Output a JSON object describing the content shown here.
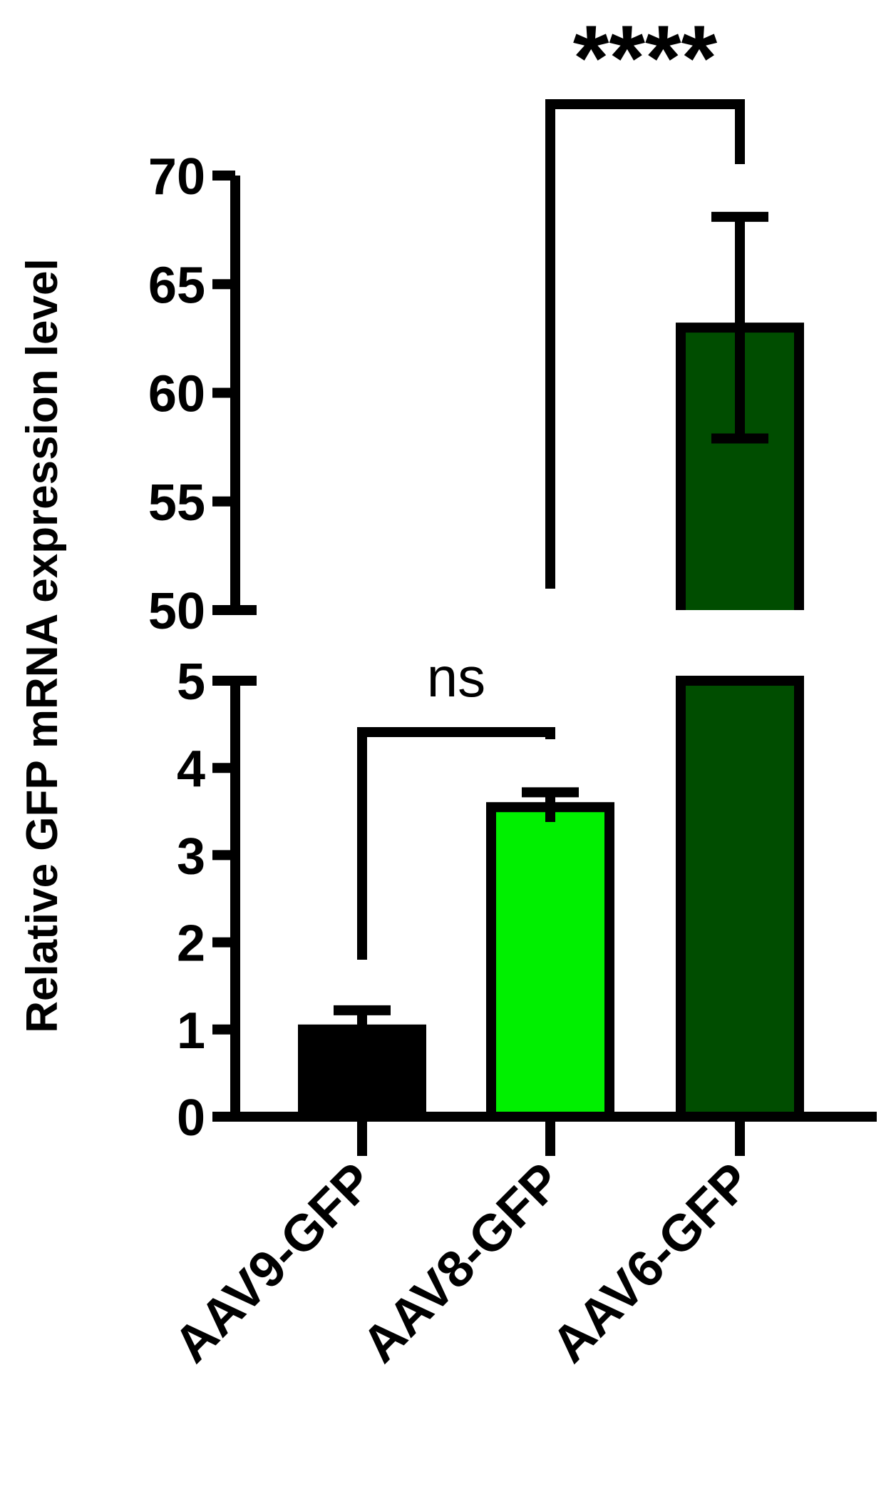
{
  "chart_data": {
    "type": "bar",
    "title": "",
    "xlabel": "",
    "ylabel": "Relative GFP mRNA expression level",
    "categories": [
      "AAV9-GFP",
      "AAV8-GFP",
      "AAV6-GFP"
    ],
    "values": [
      1.0,
      3.55,
      63.0
    ],
    "errors": [
      0.22,
      0.17,
      5.1
    ],
    "bar_colors": [
      "#000000",
      "#00f000",
      "#004d00"
    ],
    "y_axis_break": {
      "lower_segment": {
        "ylim": [
          0,
          5
        ],
        "ticks": [
          "0",
          "1",
          "2",
          "3",
          "4",
          "5"
        ]
      },
      "upper_segment": {
        "ylim": [
          50,
          70
        ],
        "ticks": [
          "50",
          "55",
          "60",
          "65",
          "70"
        ]
      }
    },
    "significance": [
      {
        "from": "AAV9-GFP",
        "to": "AAV8-GFP",
        "label": "ns"
      },
      {
        "from": "AAV8-GFP",
        "to": "AAV6-GFP",
        "label": "****"
      }
    ],
    "grid": false,
    "legend": "none"
  }
}
